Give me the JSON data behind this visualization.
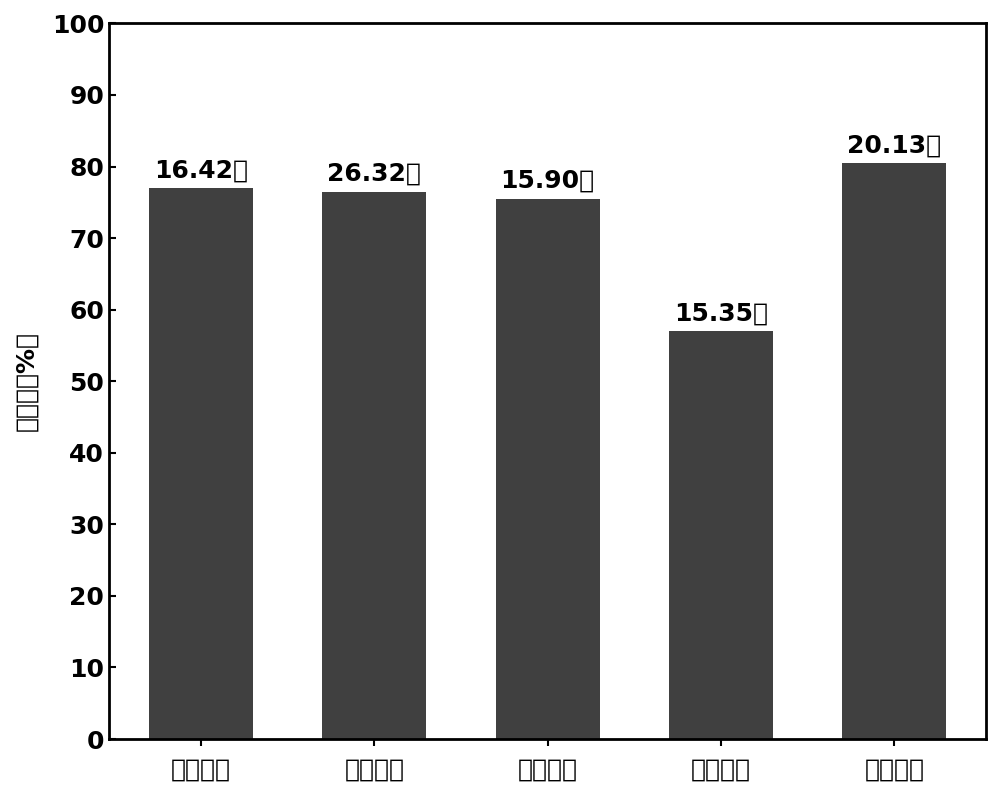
{
  "categories": [
    "实施例二",
    "实施例五",
    "实施例六",
    "实施例七",
    "实施例八"
  ],
  "values": [
    77.0,
    76.5,
    75.5,
    57.0,
    80.5
  ],
  "labels": [
    "16.42秒",
    "26.32秒",
    "15.90秒",
    "15.35秒",
    "20.13秒"
  ],
  "bar_color": "#404040",
  "ylabel": "收缩率（%）",
  "ylim": [
    0,
    100
  ],
  "yticks": [
    0,
    10,
    20,
    30,
    40,
    50,
    60,
    70,
    80,
    90,
    100
  ],
  "background_color": "#ffffff",
  "label_fontsize": 18,
  "tick_fontsize": 18,
  "ylabel_fontsize": 18
}
